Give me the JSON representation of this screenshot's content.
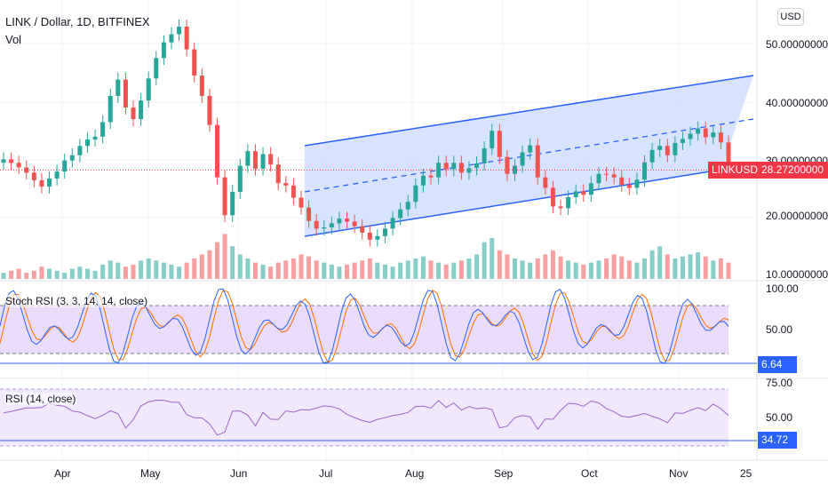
{
  "header": {
    "symbol": "LINK / Dollar, 1D, BITFINEX",
    "volume_label": "Vol",
    "currency_button": "USD"
  },
  "price_axis": [
    "50.00000000",
    "40.00000000",
    "30.00000000",
    "20.00000000",
    "10.00000000"
  ],
  "last_price": {
    "symbol": "LINKUSD",
    "price": "28.27200000"
  },
  "stoch_rsi": {
    "label": "Stoch RSI (3, 3, 14, 14, close)",
    "ticks": [
      "100.00",
      "50.00"
    ],
    "value": "6.64"
  },
  "rsi": {
    "label": "RSI (14, close)",
    "ticks": [
      "75.00",
      "50.00"
    ],
    "value": "34.72"
  },
  "time_axis": [
    "Apr",
    "May",
    "Jun",
    "Jul",
    "Aug",
    "Sep",
    "Oct",
    "Nov",
    "25"
  ],
  "colors": {
    "up": "#26a69a",
    "down": "#ef5350",
    "channel": "#2962ff",
    "channel_fill": "#c9d9ff",
    "stoch_band": "#e6d6f9",
    "rsi_band": "#f1e6fb",
    "stoch_k": "#2962ff",
    "stoch_d": "#ff6d00",
    "rsi_line": "#9c64c6",
    "last_price": "#f23645"
  },
  "chart_data": {
    "type": "candlestick",
    "title": "LINK / Dollar, 1D, BITFINEX",
    "y_range": [
      10,
      55
    ],
    "months": [
      "Apr",
      "May",
      "Jun",
      "Jul",
      "Aug",
      "Sep",
      "Oct",
      "Nov"
    ],
    "close_series": [
      30.1,
      29.5,
      28.7,
      27.8,
      26.5,
      25.4,
      26.8,
      28.0,
      29.9,
      30.8,
      32.4,
      33.5,
      34.0,
      36.5,
      41.0,
      43.8,
      39.0,
      37.0,
      40.2,
      44.0,
      47.5,
      50.2,
      51.6,
      52.9,
      49.0,
      44.5,
      41.0,
      36.0,
      27.0,
      20.5,
      24.5,
      29.0,
      31.5,
      28.5,
      31.0,
      29.2,
      26.0,
      25.6,
      23.5,
      21.8,
      19.5,
      18.2,
      18.4,
      19.1,
      19.9,
      19.4,
      18.6,
      17.5,
      16.3,
      16.9,
      18.2,
      20.0,
      21.5,
      22.8,
      25.6,
      27.3,
      27.0,
      29.5,
      28.4,
      29.5,
      27.8,
      28.6,
      29.4,
      32.0,
      35.0,
      30.5,
      27.6,
      29.0,
      31.3,
      32.5,
      27.0,
      25.2,
      22.0,
      21.7,
      23.6,
      24.6,
      24.0,
      26.0,
      27.6,
      27.5,
      27.0,
      25.7,
      25.2,
      26.6,
      29.6,
      31.7,
      32.4,
      30.8,
      32.9,
      33.6,
      34.5,
      35.4,
      33.9,
      34.7,
      33.0,
      28.3
    ],
    "volume_series": [
      3,
      4,
      5,
      3,
      4,
      6,
      5,
      4,
      3,
      5,
      6,
      5,
      4,
      7,
      9,
      8,
      6,
      7,
      9,
      10,
      9,
      8,
      7,
      6,
      8,
      10,
      12,
      14,
      18,
      22,
      16,
      12,
      10,
      8,
      7,
      6,
      8,
      9,
      10,
      12,
      11,
      9,
      8,
      7,
      6,
      7,
      8,
      9,
      10,
      8,
      7,
      6,
      8,
      9,
      10,
      11,
      9,
      8,
      7,
      8,
      9,
      10,
      12,
      18,
      20,
      14,
      12,
      10,
      9,
      8,
      10,
      12,
      14,
      11,
      9,
      8,
      7,
      8,
      9,
      10,
      12,
      11,
      9,
      8,
      10,
      14,
      16,
      12,
      10,
      11,
      12,
      13,
      11,
      9,
      10,
      8
    ],
    "channel": {
      "upper": [
        [
          0.37,
          33.7
        ],
        [
          0.91,
          43.7
        ]
      ],
      "lower": [
        [
          0.37,
          17.0
        ],
        [
          0.87,
          26.6
        ]
      ]
    },
    "last_price": 28.272,
    "stoch_rsi_last": 6.64,
    "rsi_last": 34.72
  }
}
